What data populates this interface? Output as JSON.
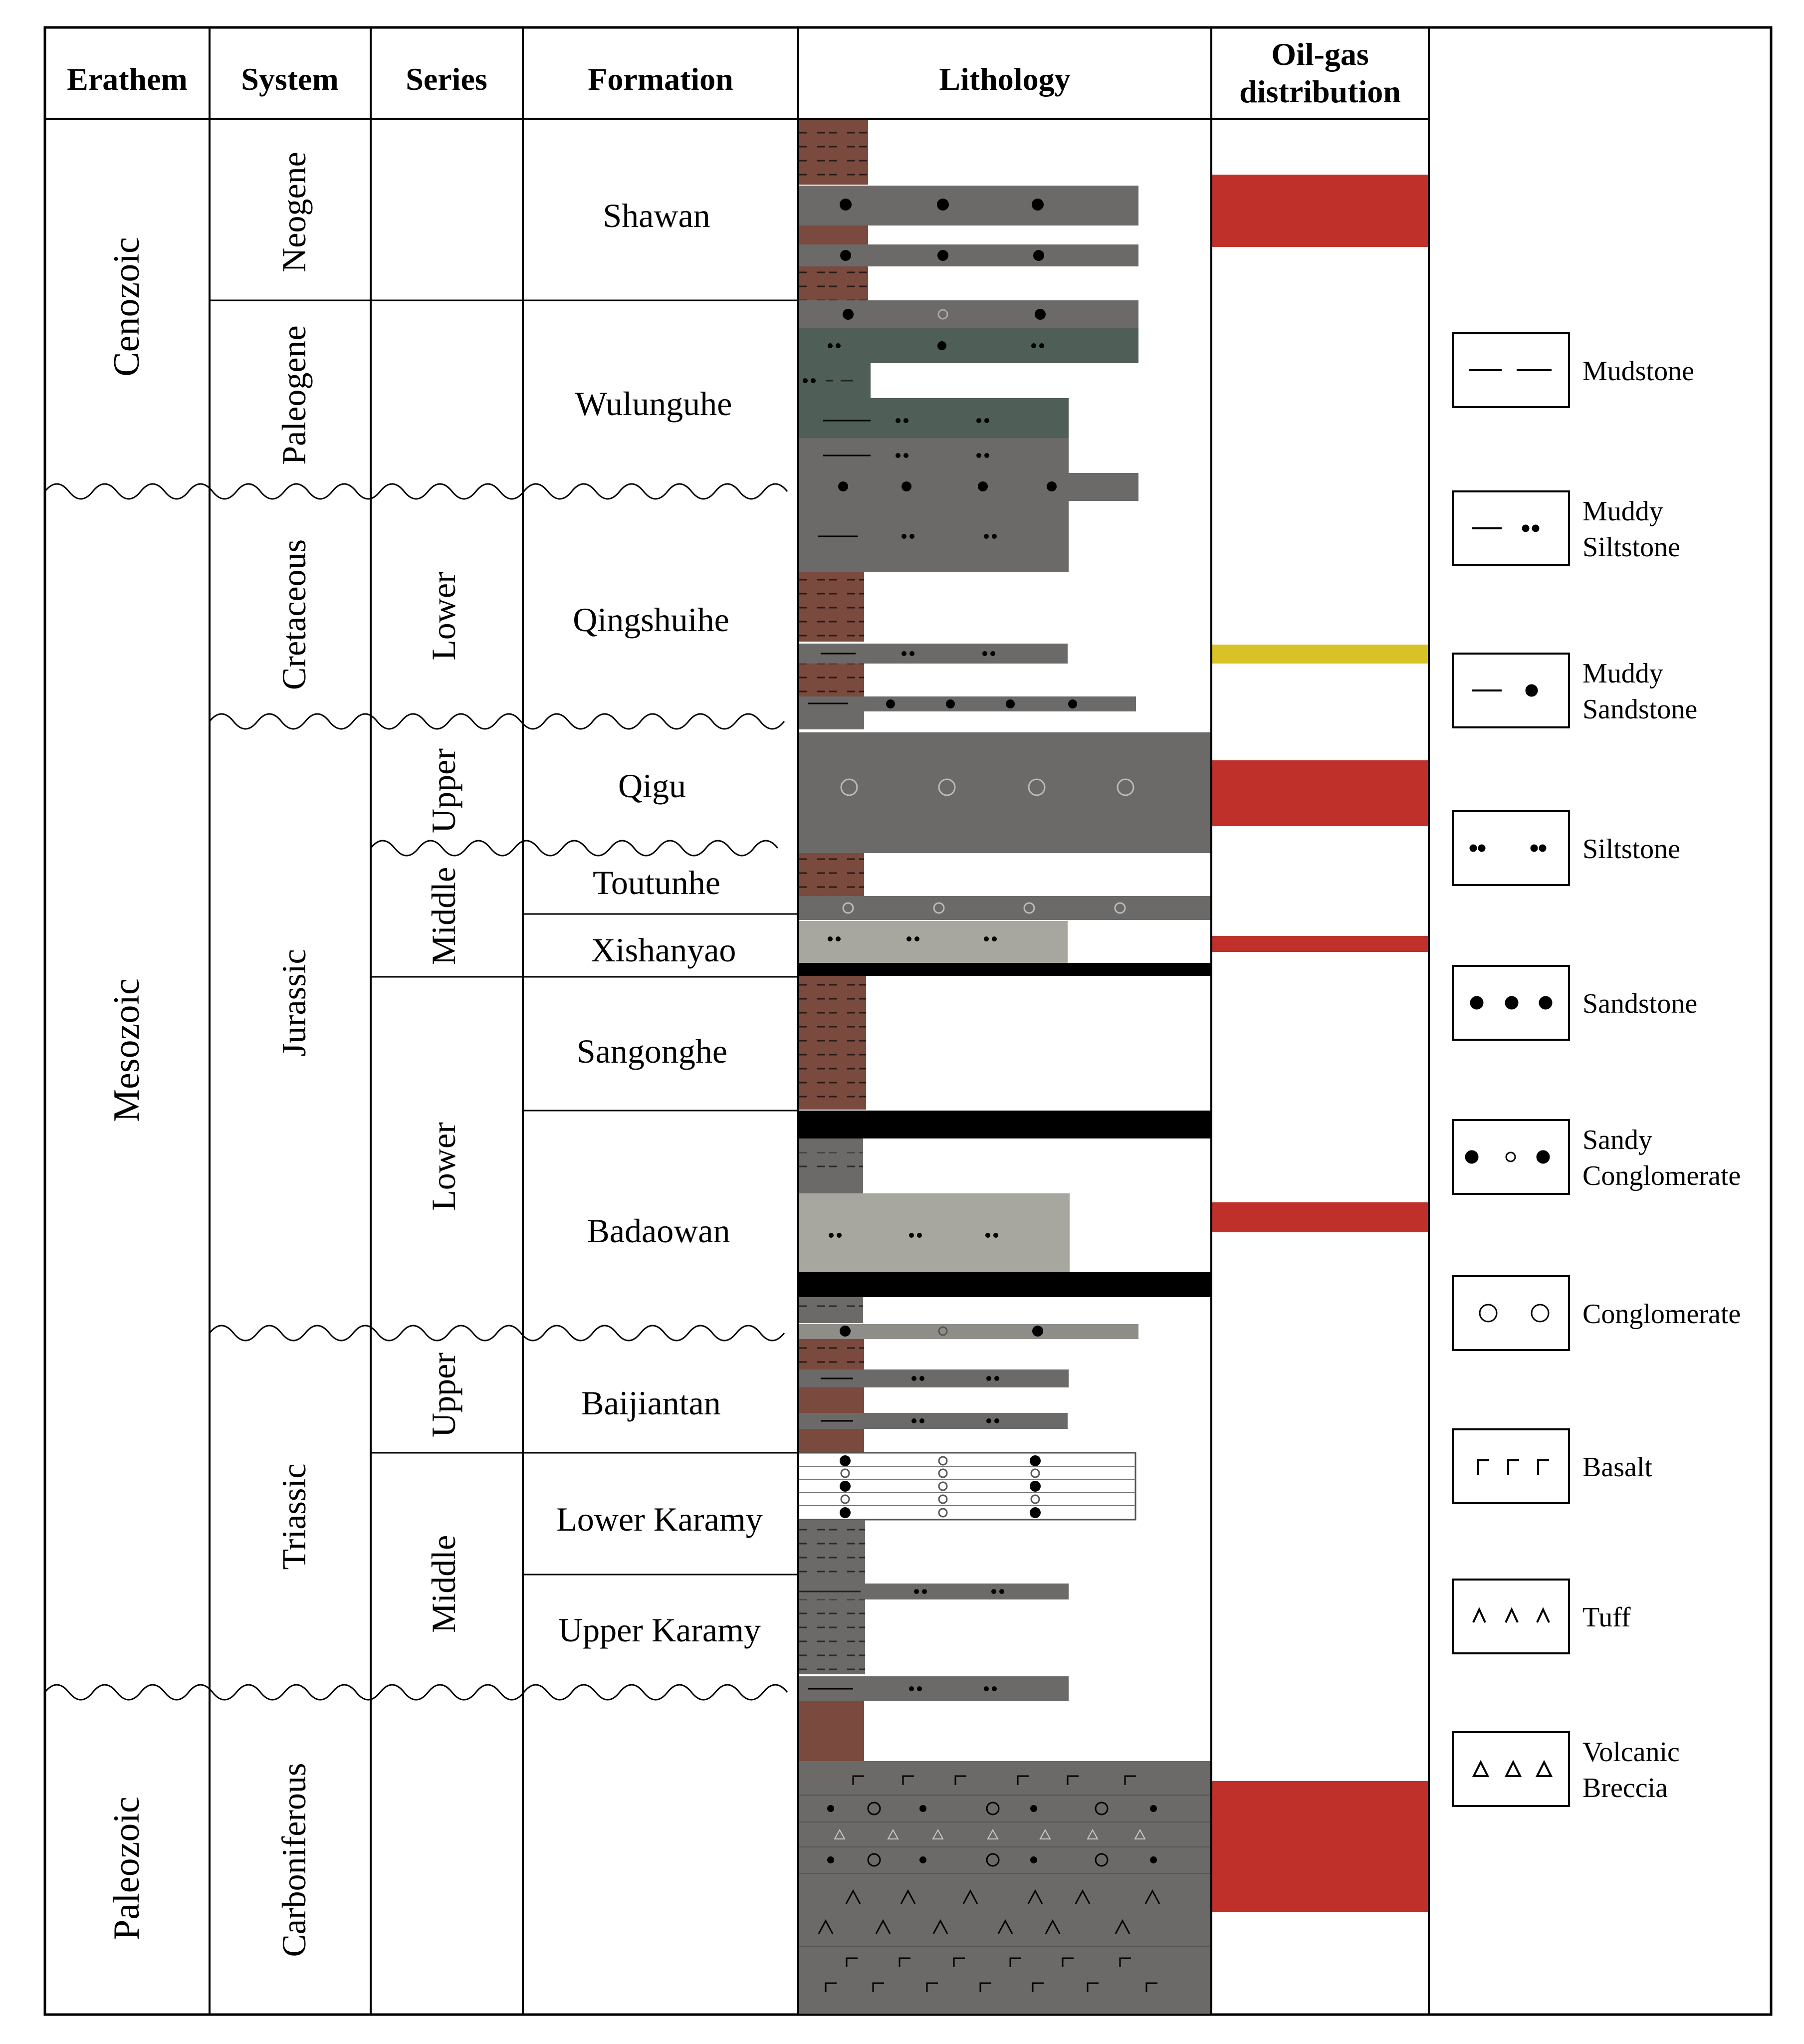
{
  "columns": {
    "erathem": "Erathem",
    "system": "System",
    "series": "Series",
    "formation": "Formation",
    "lithology": "Lithology",
    "oilgas_line1": "Oil-gas",
    "oilgas_line2": "distribution"
  },
  "erathems": [
    "Cenozoic",
    "Mesozoic",
    "Paleozoic"
  ],
  "systems": [
    "Neogene",
    "Paleogene",
    "Cretaceous",
    "Jurassic",
    "Triassic",
    "Carboniferous"
  ],
  "series": [
    "Lower",
    "Upper",
    "Middle",
    "Lower",
    "Upper",
    "Middle"
  ],
  "formations": [
    "Shawan",
    "Wulunguhe",
    "Qingshuihe",
    "Qigu",
    "Toutunhe",
    "Xishanyao",
    "Sangonghe",
    "Badaowan",
    "Baijiantan",
    "Lower Karamy",
    "Upper Karamy"
  ],
  "legend": [
    {
      "icon": "mudstone-symbol-icon",
      "line1": "Mudstone",
      "line2": ""
    },
    {
      "icon": "muddy-siltstone-symbol-icon",
      "line1": "Muddy",
      "line2": "Siltstone"
    },
    {
      "icon": "muddy-sandstone-symbol-icon",
      "line1": "Muddy",
      "line2": "Sandstone"
    },
    {
      "icon": "siltstone-symbol-icon",
      "line1": "Siltstone",
      "line2": ""
    },
    {
      "icon": "sandstone-symbol-icon",
      "line1": "Sandstone",
      "line2": ""
    },
    {
      "icon": "sandy-conglomerate-symbol-icon",
      "line1": "Sandy",
      "line2": "Conglomerate"
    },
    {
      "icon": "conglomerate-symbol-icon",
      "line1": "Conglomerate",
      "line2": ""
    },
    {
      "icon": "basalt-symbol-icon",
      "line1": "Basalt",
      "line2": ""
    },
    {
      "icon": "tuff-symbol-icon",
      "line1": "Tuff",
      "line2": ""
    },
    {
      "icon": "volcanic-breccia-symbol-icon",
      "line1": "Volcanic",
      "line2": "Breccia"
    }
  ],
  "colors": {
    "brown_mudstone": "#7a4a3e",
    "gray_rock": "#6b6a69",
    "green_rock": "#4f5e56",
    "light_rock": "#a8a79f",
    "oil_red": "#c0302a",
    "oil_yellow": "#d8c225",
    "coal_black": "#000000"
  }
}
